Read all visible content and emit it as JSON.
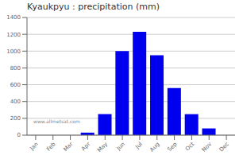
{
  "chart_data": {
    "type": "bar",
    "title": "Kyaukpyu : precipitation (mm)",
    "annotations": [
      "www.allmetsat.com"
    ],
    "categories": [
      "Jan",
      "Feb",
      "Mar",
      "Apr",
      "May",
      "Jun",
      "Jul",
      "Aug",
      "Sep",
      "Oct",
      "Nov",
      "Dec"
    ],
    "values": [
      0,
      0,
      0,
      30,
      250,
      1000,
      1230,
      950,
      560,
      250,
      80,
      0
    ],
    "color": "#0000ee",
    "ylim": [
      0,
      1400
    ],
    "yticks": [
      0,
      200,
      400,
      600,
      800,
      1000,
      1200,
      1400
    ],
    "grid": true
  }
}
